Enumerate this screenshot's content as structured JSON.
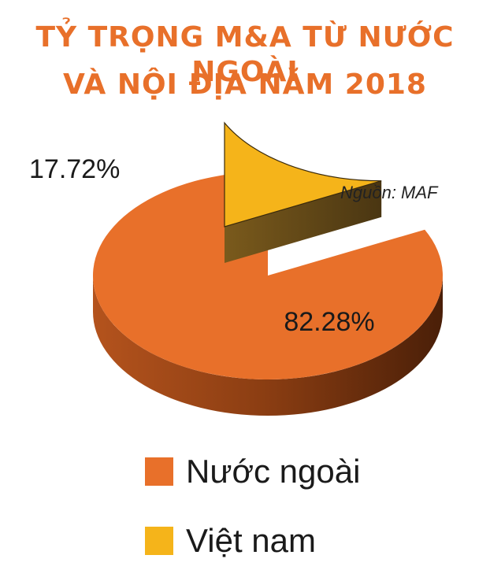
{
  "title_line1": "TỶ TRỌNG M&A TỪ NƯỚC NGOÀI",
  "title_line2": "VÀ NỘI ĐỊA NĂM 2018",
  "source": "Nguồn: MAF",
  "colors": {
    "title": "#e8702a",
    "foreign": "#e8702a",
    "vietnam": "#f5b41a"
  },
  "chart_data": {
    "type": "pie",
    "style": "3d-exploded",
    "slices": [
      {
        "name": "Nước ngoài",
        "value": 82.28,
        "label": "82.28%",
        "color": "#e8702a"
      },
      {
        "name": "Việt nam",
        "value": 17.72,
        "label": "17.72%",
        "color": "#f5b41a"
      }
    ],
    "legend_position": "bottom"
  },
  "legend": [
    {
      "label": "Nước ngoài"
    },
    {
      "label": "Việt nam"
    }
  ]
}
